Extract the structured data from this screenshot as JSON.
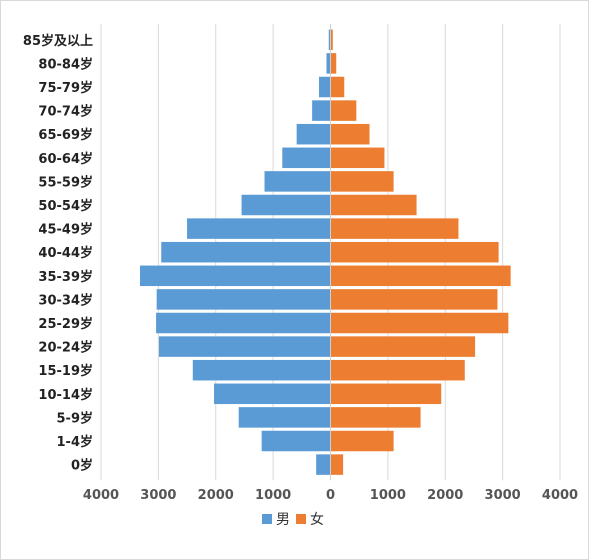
{
  "chart_data": {
    "type": "bar",
    "orientation": "horizontal",
    "layout": "population-pyramid",
    "categories": [
      "85岁及以上",
      "80-84岁",
      "75-79岁",
      "70-74岁",
      "65-69岁",
      "60-64岁",
      "55-59岁",
      "50-54岁",
      "45-49岁",
      "40-44岁",
      "35-39岁",
      "30-34岁",
      "25-29岁",
      "20-24岁",
      "15-19岁",
      "10-14岁",
      "5-9岁",
      "1-4岁",
      "0岁"
    ],
    "series": [
      {
        "name": "男",
        "color": "#5b9bd5",
        "side": "left",
        "values": [
          30,
          70,
          200,
          320,
          590,
          840,
          1150,
          1550,
          2500,
          2950,
          3320,
          3030,
          3040,
          2990,
          2400,
          2030,
          1600,
          1200,
          250
        ]
      },
      {
        "name": "女",
        "color": "#ed7d31",
        "side": "right",
        "values": [
          40,
          100,
          240,
          450,
          680,
          940,
          1100,
          1500,
          2230,
          2930,
          3140,
          2910,
          3100,
          2520,
          2340,
          1930,
          1570,
          1100,
          220
        ]
      }
    ],
    "xlim": [
      -4000,
      4000
    ],
    "xticks": [
      -4000,
      -3000,
      -2000,
      -1000,
      0,
      1000,
      2000,
      3000,
      4000
    ],
    "xtick_labels": [
      "4000",
      "3000",
      "2000",
      "1000",
      "0",
      "1000",
      "2000",
      "3000",
      "4000"
    ],
    "grid": "vertical",
    "legend_position": "bottom"
  },
  "legend": {
    "male_label": "男",
    "female_label": "女"
  }
}
